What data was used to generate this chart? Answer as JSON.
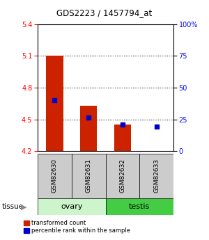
{
  "title": "GDS2223 / 1457794_at",
  "samples": [
    "GSM82630",
    "GSM82631",
    "GSM82632",
    "GSM82633"
  ],
  "transformed_count": [
    5.1,
    4.63,
    4.45,
    4.2
  ],
  "base": 4.2,
  "percentile_rank": [
    4.68,
    4.52,
    4.45,
    4.43
  ],
  "ylim": [
    4.2,
    5.4
  ],
  "yticks_left": [
    4.2,
    4.5,
    4.8,
    5.1,
    5.4
  ],
  "yticks_right_pct": [
    0,
    25,
    50,
    75,
    100
  ],
  "grid_lines": [
    4.5,
    4.8,
    5.1
  ],
  "bar_color": "#CC2200",
  "dot_color": "#0000CC",
  "bar_width": 0.5,
  "legend_labels": [
    "transformed count",
    "percentile rank within the sample"
  ],
  "tissue_label": "tissue",
  "sample_box_color": "#cccccc",
  "ovary_color": "#ccf5cc",
  "testis_color": "#44cc44",
  "ovary_indices": [
    0,
    1
  ],
  "testis_indices": [
    2,
    3
  ]
}
